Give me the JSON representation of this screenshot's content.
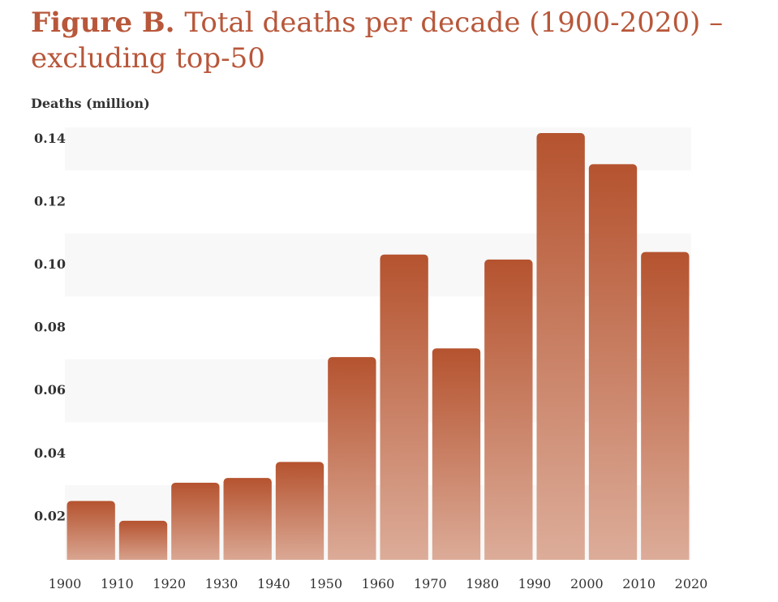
{
  "title": {
    "label": "Figure B.",
    "text": "Total deaths per decade (1900-2020) – excluding top-50"
  },
  "colors": {
    "accent": "#b8573a",
    "bar_top": "#b5532f",
    "bar_bottom": "#ddae9b",
    "band": "#f8f8f8"
  },
  "chart_data": {
    "type": "bar",
    "title": "Figure B. Total deaths per decade (1900-2020) – excluding top-50",
    "ylabel": "Deaths (million)",
    "xlabel": "",
    "x_ticks": [
      "1900",
      "1910",
      "1920",
      "1930",
      "1940",
      "1950",
      "1960",
      "1970",
      "1980",
      "1990",
      "2000",
      "2010",
      "2020"
    ],
    "y_ticks": [
      "0.02",
      "0.04",
      "0.06",
      "0.08",
      "0.10",
      "0.12",
      "0.14"
    ],
    "ylim": [
      0.0063,
      0.1437
    ],
    "bar_edges_start": 1900,
    "bar_width_years": 10,
    "categories": [
      "1900s",
      "1910s",
      "1920s",
      "1930s",
      "1940s",
      "1950s",
      "1960s",
      "1970s",
      "1980s",
      "1990s",
      "2000s",
      "2010s"
    ],
    "values": [
      0.025,
      0.0187,
      0.0308,
      0.0323,
      0.0374,
      0.0707,
      0.1033,
      0.0735,
      0.1017,
      0.1419,
      0.132,
      0.1041
    ],
    "grid": "alternating horizontal bands",
    "legend": "none"
  }
}
